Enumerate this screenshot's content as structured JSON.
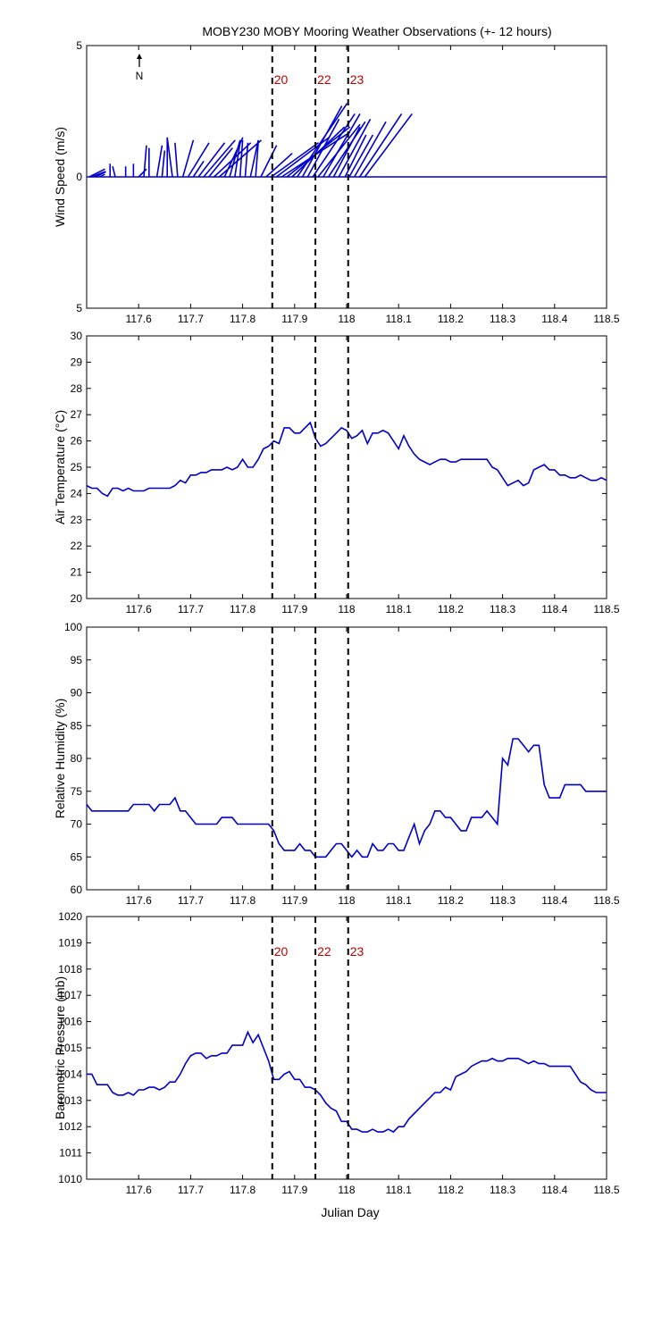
{
  "title": "MOBY230 MOBY Mooring Weather Observations (+- 12 hours)",
  "xlabel": "Julian Day",
  "xlim": [
    117.5,
    118.5
  ],
  "xticks": [
    117.6,
    117.7,
    117.8,
    117.9,
    118,
    118.1,
    118.2,
    118.3,
    118.4,
    118.5
  ],
  "xtick_labels": [
    "117.6",
    "117.7",
    "117.8",
    "117.9",
    "118",
    "118.1",
    "118.2",
    "118.3",
    "118.4",
    "118.5"
  ],
  "markers": [
    {
      "label": "20",
      "x": 117.857
    },
    {
      "label": "22",
      "x": 117.94
    },
    {
      "label": "23",
      "x": 118.003
    }
  ],
  "north_label": "N",
  "colors": {
    "series": "#0000cc",
    "marker_label": "#c00000",
    "axes": "#000000"
  },
  "chart_data": [
    {
      "type": "line",
      "name": "wind",
      "ylabel": "Wind Speed (m/s)",
      "ylim": [
        -5,
        5
      ],
      "yticks": [
        5,
        0,
        -5
      ],
      "ytick_labels": [
        "5",
        "0",
        "5"
      ],
      "show_marker_labels": true,
      "show_north_arrow": true,
      "zero_line": true,
      "vectors": [
        {
          "x": 117.505,
          "u": 0.6,
          "v": 0.3
        },
        {
          "x": 117.51,
          "u": 0.5,
          "v": 0.2
        },
        {
          "x": 117.517,
          "u": 0.4,
          "v": 0.2
        },
        {
          "x": 117.525,
          "u": 0.2,
          "v": 0.1
        },
        {
          "x": 117.545,
          "u": 0.0,
          "v": 0.5
        },
        {
          "x": 117.555,
          "u": -0.1,
          "v": 0.4
        },
        {
          "x": 117.575,
          "u": 0.0,
          "v": 0.4
        },
        {
          "x": 117.59,
          "u": 0.0,
          "v": 0.5
        },
        {
          "x": 117.6,
          "u": 0.3,
          "v": 0.3
        },
        {
          "x": 117.61,
          "u": 0.1,
          "v": 1.2
        },
        {
          "x": 117.62,
          "u": 0.0,
          "v": 1.1
        },
        {
          "x": 117.635,
          "u": 0.2,
          "v": 1.2
        },
        {
          "x": 117.645,
          "u": 0.1,
          "v": 1.0
        },
        {
          "x": 117.655,
          "u": 0.0,
          "v": 1.5
        },
        {
          "x": 117.665,
          "u": -0.2,
          "v": 1.5
        },
        {
          "x": 117.675,
          "u": -0.1,
          "v": 1.3
        },
        {
          "x": 117.685,
          "u": 0.4,
          "v": 1.4
        },
        {
          "x": 117.695,
          "u": 0.8,
          "v": 1.3
        },
        {
          "x": 117.705,
          "u": 0.4,
          "v": 0.6
        },
        {
          "x": 117.715,
          "u": 1.0,
          "v": 1.3
        },
        {
          "x": 117.725,
          "u": 1.2,
          "v": 1.4
        },
        {
          "x": 117.735,
          "u": 0.9,
          "v": 1.1
        },
        {
          "x": 117.745,
          "u": 1.4,
          "v": 1.3
        },
        {
          "x": 117.755,
          "u": 1.6,
          "v": 1.4
        },
        {
          "x": 117.765,
          "u": 0.7,
          "v": 1.5
        },
        {
          "x": 117.775,
          "u": 0.4,
          "v": 1.4
        },
        {
          "x": 117.785,
          "u": 0.2,
          "v": 1.3
        },
        {
          "x": 117.795,
          "u": 0.1,
          "v": 1.4
        },
        {
          "x": 117.805,
          "u": 0.1,
          "v": 1.3
        },
        {
          "x": 117.815,
          "u": 0.3,
          "v": 1.4
        },
        {
          "x": 117.825,
          "u": 0.1,
          "v": 1.3
        },
        {
          "x": 117.835,
          "u": 0.6,
          "v": 1.2
        },
        {
          "x": 117.845,
          "u": 1.0,
          "v": 0.9
        },
        {
          "x": 117.855,
          "u": 1.8,
          "v": 1.3
        },
        {
          "x": 117.865,
          "u": 2.0,
          "v": 1.5
        },
        {
          "x": 117.875,
          "u": 2.6,
          "v": 1.7
        },
        {
          "x": 117.885,
          "u": 2.4,
          "v": 1.9
        },
        {
          "x": 117.895,
          "u": 2.0,
          "v": 1.9
        },
        {
          "x": 117.905,
          "u": 1.9,
          "v": 2.8
        },
        {
          "x": 117.915,
          "u": 1.5,
          "v": 2.7
        },
        {
          "x": 117.925,
          "u": 1.2,
          "v": 2.2
        },
        {
          "x": 117.935,
          "u": 1.6,
          "v": 2.4
        },
        {
          "x": 117.945,
          "u": 1.6,
          "v": 2.0
        },
        {
          "x": 117.955,
          "u": 1.4,
          "v": 2.4
        },
        {
          "x": 117.965,
          "u": 1.4,
          "v": 2.1
        },
        {
          "x": 117.975,
          "u": 1.0,
          "v": 1.9
        },
        {
          "x": 117.985,
          "u": 1.2,
          "v": 2.2
        },
        {
          "x": 117.997,
          "u": 0.8,
          "v": 1.6
        },
        {
          "x": 118.005,
          "u": 0.9,
          "v": 1.6
        },
        {
          "x": 118.015,
          "u": 1.2,
          "v": 2.1
        },
        {
          "x": 118.025,
          "u": 1.6,
          "v": 2.4
        },
        {
          "x": 118.035,
          "u": 1.8,
          "v": 2.4
        }
      ]
    },
    {
      "type": "line",
      "name": "air_temperature",
      "ylabel": "Air Temperature (°C)",
      "ylim": [
        20,
        30
      ],
      "yticks": [
        20,
        21,
        22,
        23,
        24,
        25,
        26,
        27,
        28,
        29,
        30
      ],
      "ytick_labels": [
        "20",
        "21",
        "22",
        "23",
        "24",
        "25",
        "26",
        "27",
        "28",
        "29",
        "30"
      ],
      "show_marker_labels": false,
      "x": [
        117.5,
        117.51,
        117.52,
        117.53,
        117.54,
        117.55,
        117.56,
        117.57,
        117.58,
        117.59,
        117.6,
        117.61,
        117.62,
        117.63,
        117.64,
        117.65,
        117.66,
        117.67,
        117.68,
        117.69,
        117.7,
        117.71,
        117.72,
        117.73,
        117.74,
        117.75,
        117.76,
        117.77,
        117.78,
        117.79,
        117.8,
        117.81,
        117.82,
        117.83,
        117.84,
        117.85,
        117.86,
        117.87,
        117.88,
        117.89,
        117.9,
        117.91,
        117.92,
        117.93,
        117.94,
        117.95,
        117.96,
        117.97,
        117.98,
        117.99,
        118,
        118.01,
        118.02,
        118.03,
        118.04,
        118.05,
        118.06,
        118.07,
        118.08,
        118.09,
        118.1,
        118.11,
        118.12,
        118.13,
        118.14,
        118.15,
        118.16,
        118.17,
        118.18,
        118.19,
        118.2,
        118.21,
        118.22,
        118.23,
        118.24,
        118.25,
        118.26,
        118.27,
        118.28,
        118.29,
        118.3,
        118.31,
        118.32,
        118.33,
        118.34,
        118.35,
        118.36,
        118.37,
        118.38,
        118.39,
        118.4,
        118.41,
        118.42,
        118.43,
        118.44,
        118.45,
        118.46,
        118.47,
        118.48,
        118.49,
        118.5
      ],
      "y": [
        24.3,
        24.2,
        24.2,
        24.0,
        23.9,
        24.2,
        24.2,
        24.1,
        24.2,
        24.1,
        24.1,
        24.1,
        24.2,
        24.2,
        24.2,
        24.2,
        24.2,
        24.3,
        24.5,
        24.4,
        24.7,
        24.7,
        24.8,
        24.8,
        24.9,
        24.9,
        24.9,
        25.0,
        24.9,
        25.0,
        25.3,
        25.0,
        25.0,
        25.3,
        25.7,
        25.8,
        26.0,
        25.9,
        26.5,
        26.5,
        26.3,
        26.3,
        26.5,
        26.7,
        26.1,
        25.8,
        25.9,
        26.1,
        26.3,
        26.5,
        26.4,
        26.1,
        26.2,
        26.4,
        25.9,
        26.3,
        26.3,
        26.4,
        26.3,
        26.0,
        25.7,
        26.2,
        25.8,
        25.5,
        25.3,
        25.2,
        25.1,
        25.2,
        25.3,
        25.3,
        25.2,
        25.2,
        25.3,
        25.3,
        25.3,
        25.3,
        25.3,
        25.3,
        25.0,
        24.9,
        24.6,
        24.3,
        24.4,
        24.5,
        24.3,
        24.4,
        24.9,
        25.0,
        25.1,
        24.9,
        24.9,
        24.7,
        24.7,
        24.6,
        24.6,
        24.7,
        24.6,
        24.5,
        24.5,
        24.6,
        24.5
      ]
    },
    {
      "type": "line",
      "name": "relative_humidity",
      "ylabel": "Relative Humidity (%)",
      "ylim": [
        60,
        100
      ],
      "yticks": [
        60,
        65,
        70,
        75,
        80,
        85,
        90,
        95,
        100
      ],
      "ytick_labels": [
        "60",
        "65",
        "70",
        "75",
        "80",
        "85",
        "90",
        "95",
        "100"
      ],
      "show_marker_labels": false,
      "x": [
        117.5,
        117.51,
        117.52,
        117.53,
        117.54,
        117.55,
        117.56,
        117.57,
        117.58,
        117.59,
        117.6,
        117.61,
        117.62,
        117.63,
        117.64,
        117.65,
        117.66,
        117.67,
        117.68,
        117.69,
        117.7,
        117.71,
        117.72,
        117.73,
        117.74,
        117.75,
        117.76,
        117.77,
        117.78,
        117.79,
        117.8,
        117.81,
        117.82,
        117.83,
        117.84,
        117.85,
        117.86,
        117.87,
        117.88,
        117.89,
        117.9,
        117.91,
        117.92,
        117.93,
        117.94,
        117.95,
        117.96,
        117.97,
        117.98,
        117.99,
        118,
        118.01,
        118.02,
        118.03,
        118.04,
        118.05,
        118.06,
        118.07,
        118.08,
        118.09,
        118.1,
        118.11,
        118.12,
        118.13,
        118.14,
        118.15,
        118.16,
        118.17,
        118.18,
        118.19,
        118.2,
        118.21,
        118.22,
        118.23,
        118.24,
        118.25,
        118.26,
        118.27,
        118.28,
        118.29,
        118.3,
        118.31,
        118.32,
        118.33,
        118.34,
        118.35,
        118.36,
        118.37,
        118.38,
        118.39,
        118.4,
        118.41,
        118.42,
        118.43,
        118.44,
        118.45,
        118.46,
        118.47,
        118.48,
        118.49,
        118.5
      ],
      "y": [
        73,
        72,
        72,
        72,
        72,
        72,
        72,
        72,
        72,
        73,
        73,
        73,
        73,
        72,
        73,
        73,
        73,
        74,
        72,
        72,
        71,
        70,
        70,
        70,
        70,
        70,
        71,
        71,
        71,
        70,
        70,
        70,
        70,
        70,
        70,
        70,
        69,
        67,
        66,
        66,
        66,
        67,
        66,
        66,
        65,
        65,
        65,
        66,
        67,
        67,
        66,
        65,
        66,
        65,
        65,
        67,
        66,
        66,
        67,
        67,
        66,
        66,
        68,
        70,
        67,
        69,
        70,
        72,
        72,
        71,
        71,
        70,
        69,
        69,
        71,
        71,
        71,
        72,
        71,
        70,
        80,
        79,
        83,
        83,
        82,
        81,
        82,
        82,
        76,
        74,
        74,
        74,
        76,
        76,
        76,
        76,
        75,
        75,
        75,
        75,
        75
      ]
    },
    {
      "type": "line",
      "name": "barometric_pressure",
      "ylabel": "Barometric Pressure (mb)",
      "ylim": [
        1010,
        1020
      ],
      "yticks": [
        1010,
        1011,
        1012,
        1013,
        1014,
        1015,
        1016,
        1017,
        1018,
        1019,
        1020
      ],
      "ytick_labels": [
        "1010",
        "1011",
        "1012",
        "1013",
        "1014",
        "1015",
        "1016",
        "1017",
        "1018",
        "1019",
        "1020"
      ],
      "show_marker_labels": true,
      "x": [
        117.5,
        117.51,
        117.52,
        117.53,
        117.54,
        117.55,
        117.56,
        117.57,
        117.58,
        117.59,
        117.6,
        117.61,
        117.62,
        117.63,
        117.64,
        117.65,
        117.66,
        117.67,
        117.68,
        117.69,
        117.7,
        117.71,
        117.72,
        117.73,
        117.74,
        117.75,
        117.76,
        117.77,
        117.78,
        117.79,
        117.8,
        117.81,
        117.82,
        117.83,
        117.84,
        117.85,
        117.86,
        117.87,
        117.88,
        117.89,
        117.9,
        117.91,
        117.92,
        117.93,
        117.94,
        117.95,
        117.96,
        117.97,
        117.98,
        117.99,
        118,
        118.01,
        118.02,
        118.03,
        118.04,
        118.05,
        118.06,
        118.07,
        118.08,
        118.09,
        118.1,
        118.11,
        118.12,
        118.13,
        118.14,
        118.15,
        118.16,
        118.17,
        118.18,
        118.19,
        118.2,
        118.21,
        118.22,
        118.23,
        118.24,
        118.25,
        118.26,
        118.27,
        118.28,
        118.29,
        118.3,
        118.31,
        118.32,
        118.33,
        118.34,
        118.35,
        118.36,
        118.37,
        118.38,
        118.39,
        118.4,
        118.41,
        118.42,
        118.43,
        118.44,
        118.45,
        118.46,
        118.47,
        118.48,
        118.49,
        118.5
      ],
      "y": [
        1014.0,
        1014.0,
        1013.6,
        1013.6,
        1013.6,
        1013.3,
        1013.2,
        1013.2,
        1013.3,
        1013.2,
        1013.4,
        1013.4,
        1013.5,
        1013.5,
        1013.4,
        1013.5,
        1013.7,
        1013.7,
        1014.0,
        1014.4,
        1014.7,
        1014.8,
        1014.8,
        1014.6,
        1014.7,
        1014.7,
        1014.8,
        1014.8,
        1015.1,
        1015.1,
        1015.1,
        1015.6,
        1015.2,
        1015.5,
        1015.0,
        1014.5,
        1013.8,
        1013.8,
        1014.0,
        1014.1,
        1013.8,
        1013.8,
        1013.5,
        1013.5,
        1013.4,
        1013.2,
        1012.9,
        1012.7,
        1012.6,
        1012.2,
        1012.2,
        1011.9,
        1011.9,
        1011.8,
        1011.8,
        1011.9,
        1011.8,
        1011.8,
        1011.9,
        1011.8,
        1012.0,
        1012.0,
        1012.3,
        1012.5,
        1012.7,
        1012.9,
        1013.1,
        1013.3,
        1013.3,
        1013.5,
        1013.4,
        1013.9,
        1014.0,
        1014.1,
        1014.3,
        1014.4,
        1014.5,
        1014.5,
        1014.6,
        1014.5,
        1014.5,
        1014.6,
        1014.6,
        1014.6,
        1014.5,
        1014.4,
        1014.5,
        1014.4,
        1014.4,
        1014.3,
        1014.3,
        1014.3,
        1014.3,
        1014.3,
        1014.0,
        1013.7,
        1013.6,
        1013.4,
        1013.3,
        1013.3,
        1013.3
      ]
    }
  ]
}
